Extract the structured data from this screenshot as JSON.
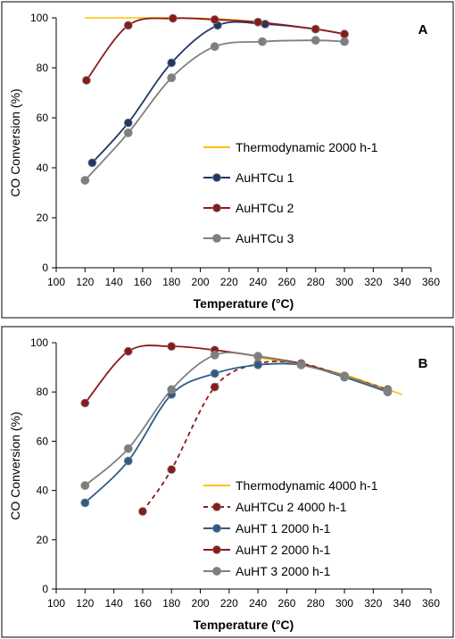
{
  "chart_data": [
    {
      "type": "line",
      "panel_label": "A",
      "xlabel": "Temperature (°C)",
      "ylabel": "CO Conversion (%)",
      "xlim": [
        100,
        360
      ],
      "ylim": [
        0,
        100
      ],
      "xticks": [
        100,
        120,
        140,
        160,
        180,
        200,
        220,
        240,
        260,
        280,
        300,
        320,
        340,
        360
      ],
      "yticks": [
        0,
        20,
        40,
        60,
        80,
        100
      ],
      "grid": false,
      "legend_position": "center-right",
      "series": [
        {
          "name": "Thermodynamic 2000 h-1",
          "color": "#FFC000",
          "markers": false,
          "dashed": false,
          "points": [
            [
              120,
              100
            ],
            [
              140,
              100
            ],
            [
              160,
              100
            ],
            [
              180,
              100
            ],
            [
              200,
              99.8
            ],
            [
              220,
              99.3
            ],
            [
              240,
              98.3
            ],
            [
              260,
              97
            ],
            [
              280,
              95.5
            ],
            [
              300,
              93.5
            ]
          ]
        },
        {
          "name": "AuHTCu 1",
          "color": "#203864",
          "markers": true,
          "dashed": false,
          "points": [
            [
              125,
              42
            ],
            [
              150,
              58
            ],
            [
              180,
              82
            ],
            [
              212,
              97
            ],
            [
              245,
              97.5
            ],
            [
              280,
              95.5
            ],
            [
              300,
              93.5
            ]
          ]
        },
        {
          "name": "AuHTCu 2",
          "color": "#8B1A1A",
          "markers": true,
          "dashed": false,
          "points": [
            [
              121,
              75
            ],
            [
              150,
              97
            ],
            [
              181,
              99.8
            ],
            [
              210,
              99.3
            ],
            [
              240,
              98.3
            ],
            [
              280,
              95.5
            ],
            [
              300,
              93.5
            ]
          ]
        },
        {
          "name": "AuHTCu 3",
          "color": "#7F7F7F",
          "markers": true,
          "dashed": false,
          "points": [
            [
              120,
              35
            ],
            [
              150,
              54
            ],
            [
              180,
              76
            ],
            [
              210,
              88.5
            ],
            [
              243,
              90.5
            ],
            [
              280,
              91
            ],
            [
              300,
              90.5
            ]
          ]
        }
      ]
    },
    {
      "type": "line",
      "panel_label": "B",
      "xlabel": "Temperature (°C)",
      "ylabel": "CO Conversion (%)",
      "xlim": [
        100,
        360
      ],
      "ylim": [
        0,
        100
      ],
      "xticks": [
        100,
        120,
        140,
        160,
        180,
        200,
        220,
        240,
        260,
        280,
        300,
        320,
        340,
        360
      ],
      "yticks": [
        0,
        20,
        40,
        60,
        80,
        100
      ],
      "grid": false,
      "legend_position": "bottom-right",
      "series": [
        {
          "name": "Thermodynamic 4000 h-1",
          "color": "#FFC000",
          "markers": false,
          "dashed": false,
          "points": [
            [
              240,
              94
            ],
            [
              270,
              91
            ],
            [
              300,
              87
            ],
            [
              330,
              81
            ],
            [
              340,
              79
            ]
          ]
        },
        {
          "name": "AuHTCu 2 4000 h-1",
          "color": "#8B1A1A",
          "markers": true,
          "dashed": true,
          "points": [
            [
              160,
              31.5
            ],
            [
              180,
              48.5
            ],
            [
              210,
              82
            ],
            [
              240,
              91.5
            ],
            [
              270,
              91.5
            ],
            [
              300,
              86.5
            ],
            [
              330,
              81
            ]
          ]
        },
        {
          "name": "AuHT 1 2000 h-1",
          "color": "#2E5C8A",
          "markers": true,
          "dashed": false,
          "points": [
            [
              120,
              35
            ],
            [
              150,
              52
            ],
            [
              180,
              79
            ],
            [
              210,
              87.5
            ],
            [
              240,
              91
            ],
            [
              270,
              91
            ],
            [
              300,
              86
            ],
            [
              330,
              80
            ]
          ]
        },
        {
          "name": "AuHT 2 2000 h-1",
          "color": "#8B1A1A",
          "markers": true,
          "dashed": false,
          "points": [
            [
              120,
              75.5
            ],
            [
              150,
              96.5
            ],
            [
              180,
              98.5
            ],
            [
              210,
              97
            ],
            [
              240,
              94.5
            ],
            [
              270,
              91.5
            ],
            [
              300,
              86.5
            ],
            [
              330,
              80.5
            ]
          ]
        },
        {
          "name": "AuHT 3 2000 h-1",
          "color": "#7F7F7F",
          "markers": true,
          "dashed": false,
          "points": [
            [
              120,
              42
            ],
            [
              150,
              57
            ],
            [
              180,
              81
            ],
            [
              210,
              95
            ],
            [
              240,
              94.5
            ],
            [
              270,
              91
            ],
            [
              300,
              86.5
            ],
            [
              330,
              80.5
            ]
          ]
        }
      ]
    }
  ]
}
